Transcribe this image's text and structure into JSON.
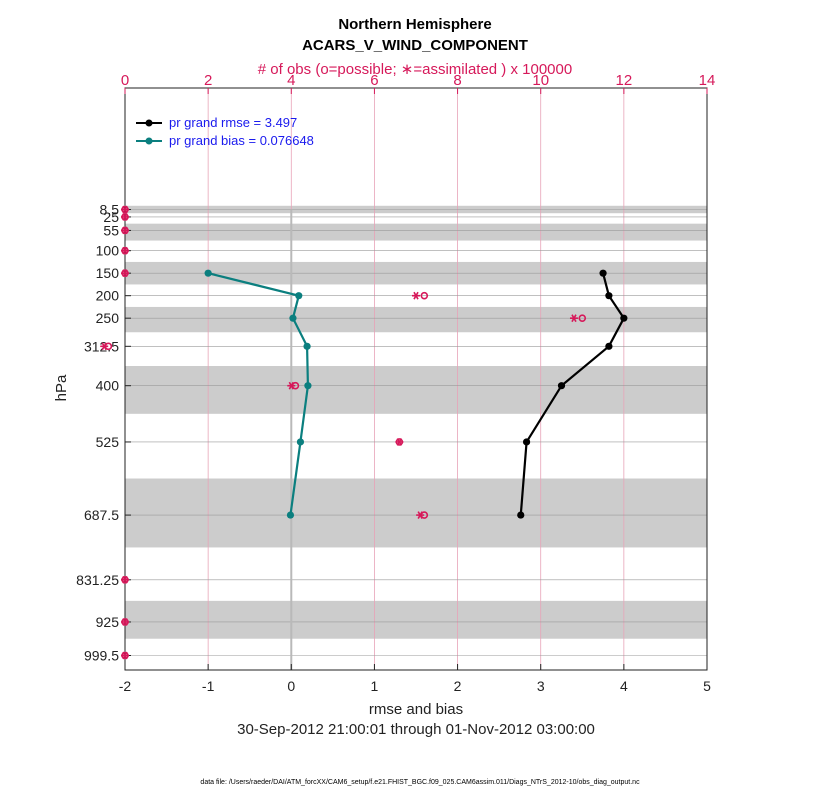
{
  "chart_data": {
    "type": "line",
    "title": "Northern Hemisphere",
    "subtitle": "ACARS_V_WIND_COMPONENT",
    "top_axis_label": "# of obs (o=possible; ∗=assimilated ) x 100000",
    "xlabel": "rmse and bias",
    "ylabel": "hPa",
    "date_range": "30-Sep-2012 21:00:01 through 01-Nov-2012 03:00:00",
    "footer": "data file: /Users/raeder/DAI/ATM_forcXX/CAM6_setup/f.e21.FHIST_BGC.f09_025.CAM6assim.011/Diags_NTrS_2012-10/obs_diag_output.nc",
    "xlim": [
      -2,
      5
    ],
    "x_ticks": [
      -2,
      -1,
      0,
      1,
      2,
      3,
      4,
      5
    ],
    "top_xlim": [
      0,
      14
    ],
    "top_ticks": [
      0,
      2,
      4,
      6,
      8,
      10,
      12,
      14
    ],
    "y_levels": [
      "8.5",
      "25",
      "55",
      "100",
      "150",
      "200",
      "250",
      "312.5",
      "400",
      "525",
      "687.5",
      "831.25",
      "925",
      "999.5"
    ],
    "series": [
      {
        "name": "pr grand rmse",
        "legend": "pr grand rmse = 3.497",
        "color": "#000000",
        "points": [
          [
            3.75,
            150
          ],
          [
            3.82,
            200
          ],
          [
            4.0,
            250
          ],
          [
            3.82,
            312.5
          ],
          [
            3.25,
            400
          ],
          [
            2.83,
            525
          ],
          [
            2.76,
            687.5
          ]
        ]
      },
      {
        "name": "pr grand bias",
        "legend": "pr grand bias = 0.076648",
        "color": "#0b7f7f",
        "points": [
          [
            -1.0,
            150
          ],
          [
            0.09,
            200
          ],
          [
            0.02,
            250
          ],
          [
            0.19,
            312.5
          ],
          [
            0.2,
            400
          ],
          [
            0.11,
            525
          ],
          [
            -0.01,
            687.5
          ]
        ]
      }
    ],
    "obs_possible": [
      [
        0,
        8.5
      ],
      [
        0,
        25
      ],
      [
        0,
        55
      ],
      [
        0,
        100
      ],
      [
        0,
        150
      ],
      [
        7.2,
        200
      ],
      [
        11.0,
        250
      ],
      [
        -0.4,
        312.5
      ],
      [
        4.1,
        400
      ],
      [
        6.6,
        525
      ],
      [
        7.2,
        687.5
      ],
      [
        0,
        831.25
      ],
      [
        0,
        925
      ],
      [
        0,
        999.5
      ]
    ],
    "obs_assimilated": [
      [
        0,
        8.5
      ],
      [
        0,
        25
      ],
      [
        0,
        55
      ],
      [
        0,
        100
      ],
      [
        0,
        150
      ],
      [
        7.0,
        200
      ],
      [
        10.8,
        250
      ],
      [
        -0.5,
        312.5
      ],
      [
        4.0,
        400
      ],
      [
        6.6,
        525
      ],
      [
        7.1,
        687.5
      ],
      [
        0,
        831.25
      ],
      [
        0,
        925
      ],
      [
        0,
        999.5
      ]
    ],
    "obs_color": "#d6195a",
    "band_color": "#cccccc"
  }
}
